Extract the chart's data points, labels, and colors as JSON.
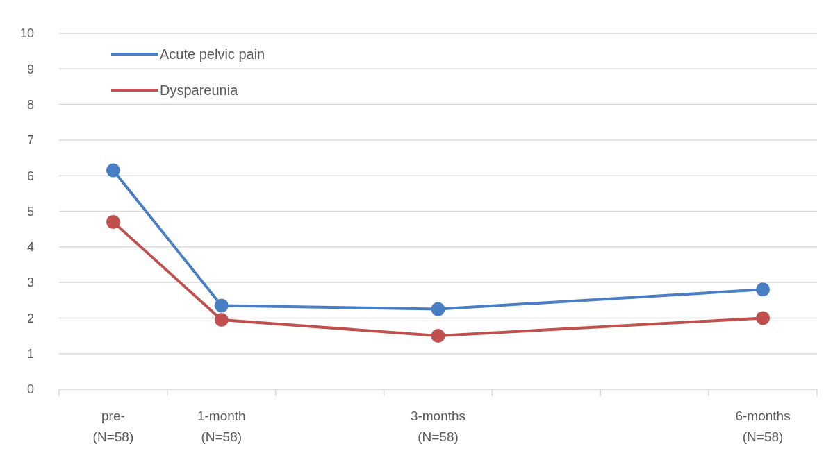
{
  "chart_data": {
    "type": "line",
    "categories": [
      "pre-\n(N=58)",
      "1-month\n(N=58)",
      null,
      "3-months\n(N=58)",
      null,
      null,
      "6-months\n(N=58)"
    ],
    "series": [
      {
        "name": "Acute pelvic pain",
        "color": "#4a7ec4",
        "values": [
          6.15,
          2.35,
          null,
          2.25,
          null,
          null,
          2.8
        ]
      },
      {
        "name": "Dyspareunia",
        "color": "#c0504d",
        "values": [
          4.7,
          1.95,
          null,
          1.5,
          null,
          null,
          2.0
        ]
      }
    ],
    "ylim": [
      0,
      10
    ],
    "yticks": [
      0,
      1,
      2,
      3,
      4,
      5,
      6,
      7,
      8,
      9,
      10
    ],
    "grid": "y",
    "legend": "top left",
    "marker": "circle",
    "line_style": "solid"
  }
}
